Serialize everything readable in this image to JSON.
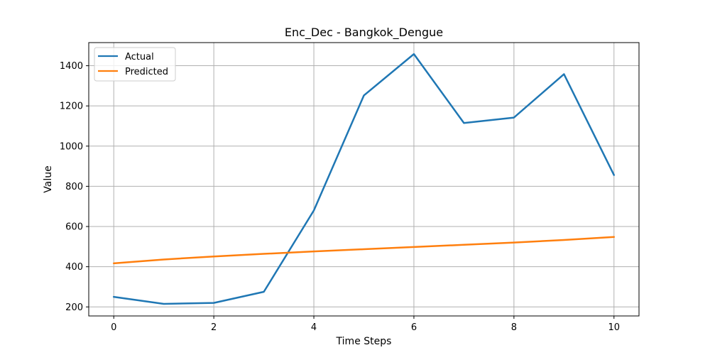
{
  "chart_data": {
    "type": "line",
    "title": "Enc_Dec - Bangkok_Dengue",
    "xlabel": "Time Steps",
    "ylabel": "Value",
    "x": [
      0,
      1,
      2,
      3,
      4,
      5,
      6,
      7,
      8,
      9,
      10
    ],
    "xlim": [
      -0.5,
      10.5
    ],
    "ylim": [
      155,
      1515
    ],
    "xticks": [
      0,
      2,
      4,
      6,
      8,
      10
    ],
    "yticks": [
      200,
      400,
      600,
      800,
      1000,
      1200,
      1400
    ],
    "grid": true,
    "legend_position": "top-left",
    "series": [
      {
        "name": "Actual",
        "color": "#1f77b4",
        "values": [
          250,
          215,
          220,
          275,
          680,
          1252,
          1458,
          1115,
          1142,
          1358,
          856
        ]
      },
      {
        "name": "Predicted",
        "color": "#ff7f0e",
        "values": [
          417,
          436,
          451,
          464,
          476,
          487,
          498,
          509,
          520,
          533,
          548
        ]
      }
    ]
  }
}
